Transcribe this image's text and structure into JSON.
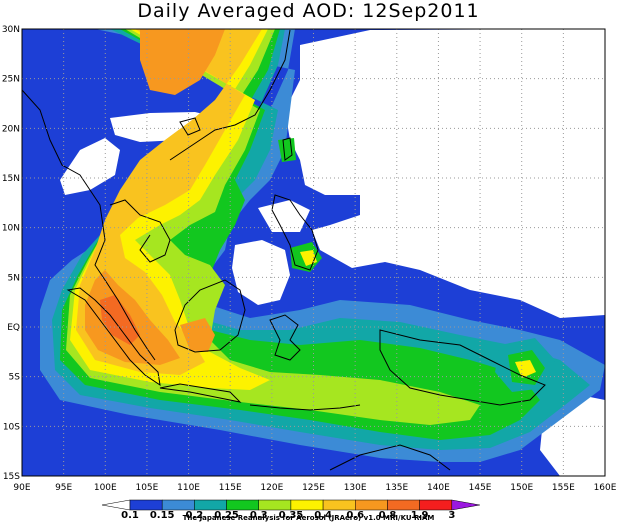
{
  "title": "Daily Averaged AOD: 12Sep2011",
  "credit": "The Japanese Reanalysis for Aerosol (JRAero) v1.0 MRI/KU RIAM",
  "colors": {
    "c0": "#ffffff",
    "c1": "#1d3fd6",
    "c2": "#3c8bd6",
    "c3": "#12a7a7",
    "c4": "#12c71f",
    "c5": "#a6e620",
    "c6": "#fdf200",
    "c7": "#f9c31f",
    "c8": "#f7981f",
    "c9": "#f36a22",
    "c10": "#f51e1e",
    "c11": "#9b18e0",
    "coast": "#000000",
    "grid": "#9a9a9a"
  },
  "map": {
    "lon_labels": [
      "90E",
      "95E",
      "100E",
      "105E",
      "110E",
      "115E",
      "120E",
      "125E",
      "130E",
      "135E",
      "140E",
      "145E",
      "150E",
      "155E",
      "160E"
    ],
    "lat_labels": [
      "30N",
      "25N",
      "20N",
      "15N",
      "10N",
      "5N",
      "EQ",
      "5S",
      "10S",
      "15S"
    ]
  },
  "colorbar": {
    "labels": [
      "0.1",
      "0.15",
      "0.2",
      "0.25",
      "0.3",
      "0.35",
      "0.4",
      "0.6",
      "0.8",
      "1.9",
      "3"
    ]
  }
}
